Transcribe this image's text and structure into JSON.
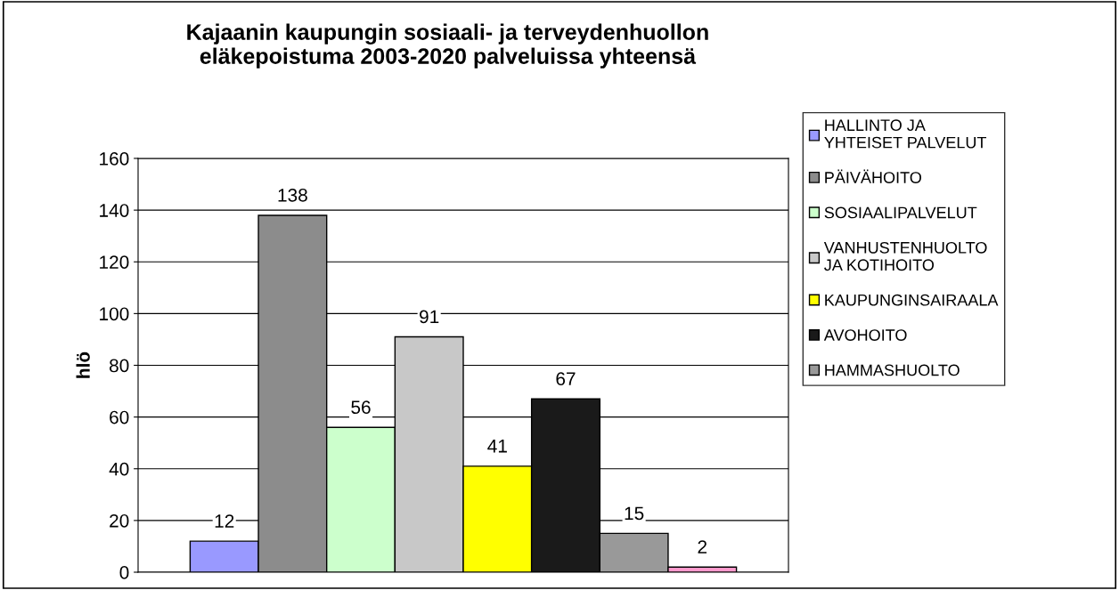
{
  "chart_data": {
    "type": "bar",
    "title": "Kajaanin kaupungin sosiaali- ja terveydenhuollon\neläkepoistuma 2003-2020 palveluissa yhteensä",
    "ylabel": "hlö",
    "categories": [
      null
    ],
    "series": [
      {
        "name": "HALLINTO JA\nYHTEISET PALVELUT",
        "color": "#9999ff",
        "values": [
          12
        ]
      },
      {
        "name": "PÄIVÄHOITO",
        "color": "#8c8c8c",
        "values": [
          138
        ]
      },
      {
        "name": "SOSIAALIPALVELUT",
        "color": "#ccffcc",
        "values": [
          56
        ]
      },
      {
        "name": "VANHUSTENHUOLTO\nJA KOTIHOITO",
        "color": "#c8c8c8",
        "values": [
          91
        ]
      },
      {
        "name": "KAUPUNGINSAIRAALA",
        "color": "#ffff00",
        "values": [
          41
        ]
      },
      {
        "name": "AVOHOITO",
        "color": "#1a1a1a",
        "values": [
          67
        ]
      },
      {
        "name": "HAMMASHUOLTO",
        "color": "#999999",
        "values": [
          15
        ]
      },
      {
        "color": "#ff99cc",
        "values": [
          2
        ]
      }
    ],
    "ylim": [
      0,
      160
    ],
    "yticks": [
      0,
      20,
      40,
      60,
      80,
      100,
      120,
      140,
      160
    ],
    "grid": "y",
    "legend": "right",
    "data_labels": true
  }
}
